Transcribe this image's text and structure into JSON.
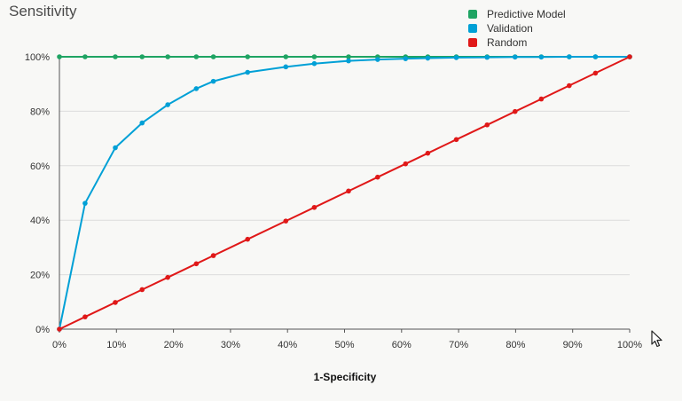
{
  "chart_data": {
    "type": "line",
    "title": "Sensitivity",
    "xlabel": "1-Specificity",
    "ylabel": "",
    "xlim": [
      0,
      1
    ],
    "ylim": [
      0,
      1
    ],
    "x_ticks": [
      "0%",
      "10%",
      "20%",
      "30%",
      "40%",
      "50%",
      "60%",
      "70%",
      "80%",
      "90%",
      "100%"
    ],
    "y_ticks": [
      "0%",
      "20%",
      "40%",
      "60%",
      "80%",
      "100%"
    ],
    "grid": true,
    "legend_position": "top-right",
    "series": [
      {
        "name": "Predictive Model",
        "color": "#1fa463",
        "points": [
          [
            0,
            1.0
          ],
          [
            0.045,
            1.0
          ],
          [
            0.098,
            1.0
          ],
          [
            0.145,
            1.0
          ],
          [
            0.19,
            1.0
          ],
          [
            0.24,
            1.0
          ],
          [
            0.27,
            1.0
          ],
          [
            0.33,
            1.0
          ],
          [
            0.397,
            1.0
          ],
          [
            0.447,
            1.0
          ],
          [
            0.507,
            1.0
          ],
          [
            0.558,
            1.0
          ],
          [
            0.607,
            1.0
          ],
          [
            0.646,
            1.0
          ],
          [
            0.696,
            1.0
          ],
          [
            0.75,
            1.0
          ],
          [
            0.799,
            1.0
          ],
          [
            0.845,
            1.0
          ],
          [
            0.894,
            1.0
          ],
          [
            0.94,
            1.0
          ],
          [
            1.0,
            1.0
          ]
        ]
      },
      {
        "name": "Validation",
        "color": "#00a0d6",
        "points": [
          [
            0,
            0
          ],
          [
            0.045,
            0.462
          ],
          [
            0.098,
            0.666
          ],
          [
            0.145,
            0.757
          ],
          [
            0.19,
            0.824
          ],
          [
            0.24,
            0.883
          ],
          [
            0.27,
            0.91
          ],
          [
            0.33,
            0.943
          ],
          [
            0.397,
            0.963
          ],
          [
            0.447,
            0.975
          ],
          [
            0.507,
            0.985
          ],
          [
            0.558,
            0.99
          ],
          [
            0.607,
            0.993
          ],
          [
            0.646,
            0.995
          ],
          [
            0.696,
            0.997
          ],
          [
            0.75,
            0.998
          ],
          [
            0.799,
            0.999
          ],
          [
            0.845,
            0.999
          ],
          [
            0.894,
            1.0
          ],
          [
            0.94,
            1.0
          ],
          [
            1.0,
            1.0
          ]
        ]
      },
      {
        "name": "Random",
        "color": "#e01818",
        "points": [
          [
            0,
            0
          ],
          [
            0.045,
            0.045
          ],
          [
            0.098,
            0.098
          ],
          [
            0.145,
            0.145
          ],
          [
            0.19,
            0.19
          ],
          [
            0.24,
            0.24
          ],
          [
            0.27,
            0.27
          ],
          [
            0.33,
            0.33
          ],
          [
            0.397,
            0.397
          ],
          [
            0.447,
            0.447
          ],
          [
            0.507,
            0.507
          ],
          [
            0.558,
            0.558
          ],
          [
            0.607,
            0.607
          ],
          [
            0.646,
            0.646
          ],
          [
            0.696,
            0.696
          ],
          [
            0.75,
            0.75
          ],
          [
            0.799,
            0.799
          ],
          [
            0.845,
            0.845
          ],
          [
            0.894,
            0.894
          ],
          [
            0.94,
            0.94
          ],
          [
            1.0,
            1.0
          ]
        ]
      }
    ]
  },
  "cursor_icon": "mouse-pointer-icon"
}
